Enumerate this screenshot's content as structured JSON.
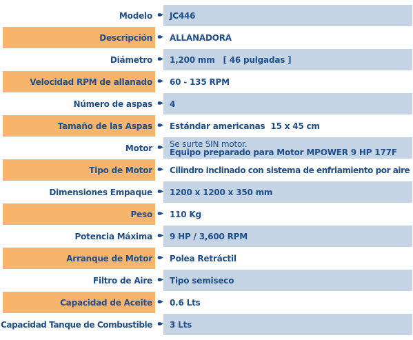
{
  "colors": {
    "text": "#1f4e8c",
    "label_highlight": "#f7b56b",
    "value_highlight": "#c6d5e6"
  },
  "arrow_icon": "bullet-arrow-icon",
  "specs": [
    {
      "label": "Modelo",
      "value": "JC446"
    },
    {
      "label": "Descripción",
      "value": "ALLANADORA"
    },
    {
      "label": "Diámetro",
      "value": "1,200 mm   [ 46 pulgadas ]"
    },
    {
      "label": "Velocidad RPM de allanado",
      "value": "60 - 135 RPM"
    },
    {
      "label": "Número de aspas",
      "value": "4"
    },
    {
      "label": "Tamaño de las Aspas",
      "value": "Estándar americanas  15 x 45 cm"
    },
    {
      "label": "Motor",
      "value_line1": "Se surte SIN motor.",
      "value_line2": "Equipo preparado para Motor MPOWER 9 HP 177F"
    },
    {
      "label": "Tipo de Motor",
      "value": "Cilindro inclinado con sistema de enfriamiento por aire"
    },
    {
      "label": "Dimensiones Empaque",
      "value": "1200 x 1200 x 350 mm"
    },
    {
      "label": "Peso",
      "value": "110 Kg"
    },
    {
      "label": "Potencia Máxima",
      "value": "9 HP / 3,600 RPM"
    },
    {
      "label": "Arranque de Motor",
      "value": "Polea Retráctil"
    },
    {
      "label": "Filtro de Aire",
      "value": "Tipo semiseco"
    },
    {
      "label": "Capacidad de Aceite",
      "value": "0.6 Lts"
    },
    {
      "label": "Capacidad Tanque de Combustible",
      "value": "3 Lts"
    }
  ]
}
